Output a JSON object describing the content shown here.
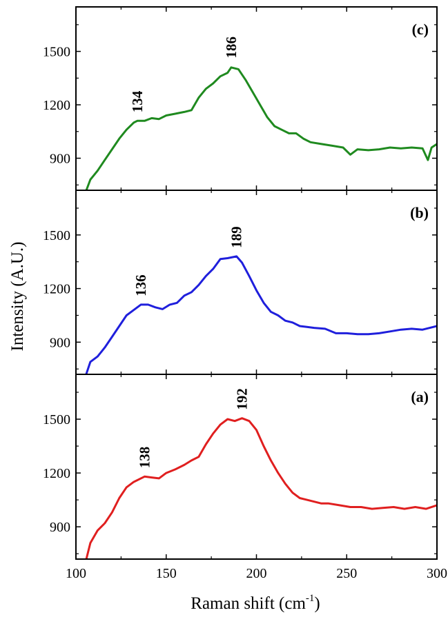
{
  "chart_data": {
    "type": "line",
    "xlabel": "Raman shift (cm",
    "xlabel_sup": "-1",
    "xlabel_tail": ")",
    "ylabel": "Intensity (A.U.)",
    "xlim": [
      100,
      300
    ],
    "xticks": [
      100,
      150,
      200,
      250,
      300
    ],
    "xtick_labels": [
      "100",
      "150",
      "200",
      "250",
      "300"
    ],
    "ylim": [
      720,
      1750
    ],
    "yticks": [
      900,
      1200,
      1500
    ],
    "ytick_labels": [
      "900",
      "1200",
      "1500"
    ],
    "grid": false,
    "panels": [
      {
        "label": "(c)",
        "color": "#1f8a1f",
        "peaks": [
          {
            "text": "134",
            "x": 134,
            "y": 1110
          },
          {
            "text": "186",
            "x": 186,
            "y": 1415
          }
        ],
        "x": [
          105,
          108,
          112,
          116,
          120,
          124,
          128,
          132,
          134,
          138,
          142,
          146,
          150,
          155,
          160,
          164,
          168,
          172,
          176,
          180,
          184,
          186,
          190,
          194,
          198,
          202,
          206,
          210,
          214,
          218,
          222,
          226,
          230,
          236,
          242,
          248,
          252,
          256,
          262,
          268,
          274,
          280,
          286,
          292,
          295,
          297,
          300
        ],
        "y": [
          700,
          780,
          830,
          890,
          950,
          1010,
          1060,
          1100,
          1110,
          1110,
          1125,
          1120,
          1140,
          1150,
          1160,
          1170,
          1240,
          1290,
          1320,
          1360,
          1380,
          1410,
          1400,
          1340,
          1270,
          1200,
          1130,
          1080,
          1060,
          1040,
          1040,
          1010,
          990,
          980,
          970,
          960,
          920,
          950,
          945,
          950,
          960,
          955,
          960,
          955,
          890,
          960,
          980
        ]
      },
      {
        "label": "(b)",
        "color": "#1f1fdc",
        "peaks": [
          {
            "text": "136",
            "x": 136,
            "y": 1110
          },
          {
            "text": "189",
            "x": 189,
            "y": 1380
          }
        ],
        "x": [
          105,
          108,
          112,
          116,
          120,
          124,
          128,
          132,
          136,
          140,
          144,
          148,
          152,
          156,
          160,
          164,
          168,
          172,
          176,
          180,
          184,
          189,
          192,
          196,
          200,
          204,
          208,
          212,
          216,
          220,
          224,
          228,
          232,
          238,
          244,
          250,
          256,
          262,
          268,
          274,
          280,
          286,
          292,
          300
        ],
        "y": [
          700,
          790,
          820,
          870,
          930,
          990,
          1050,
          1080,
          1110,
          1110,
          1095,
          1085,
          1110,
          1120,
          1160,
          1180,
          1220,
          1270,
          1310,
          1365,
          1370,
          1380,
          1345,
          1270,
          1190,
          1120,
          1070,
          1050,
          1020,
          1010,
          990,
          985,
          980,
          975,
          950,
          950,
          945,
          945,
          950,
          960,
          970,
          975,
          970,
          990
        ]
      },
      {
        "label": "(a)",
        "color": "#e01f1f",
        "peaks": [
          {
            "text": "138",
            "x": 138,
            "y": 1180
          },
          {
            "text": "192",
            "x": 192,
            "y": 1505
          }
        ],
        "x": [
          105,
          108,
          112,
          116,
          120,
          124,
          128,
          132,
          138,
          142,
          146,
          150,
          155,
          160,
          164,
          168,
          172,
          176,
          180,
          184,
          188,
          192,
          196,
          200,
          204,
          208,
          212,
          216,
          220,
          224,
          228,
          232,
          236,
          240,
          246,
          252,
          258,
          264,
          270,
          276,
          282,
          288,
          294,
          300
        ],
        "y": [
          690,
          810,
          880,
          920,
          980,
          1060,
          1120,
          1150,
          1180,
          1175,
          1170,
          1200,
          1220,
          1245,
          1270,
          1290,
          1360,
          1420,
          1470,
          1500,
          1490,
          1505,
          1490,
          1440,
          1350,
          1270,
          1200,
          1140,
          1090,
          1060,
          1050,
          1040,
          1030,
          1030,
          1020,
          1010,
          1010,
          1000,
          1005,
          1010,
          1000,
          1010,
          1000,
          1020
        ]
      }
    ]
  }
}
